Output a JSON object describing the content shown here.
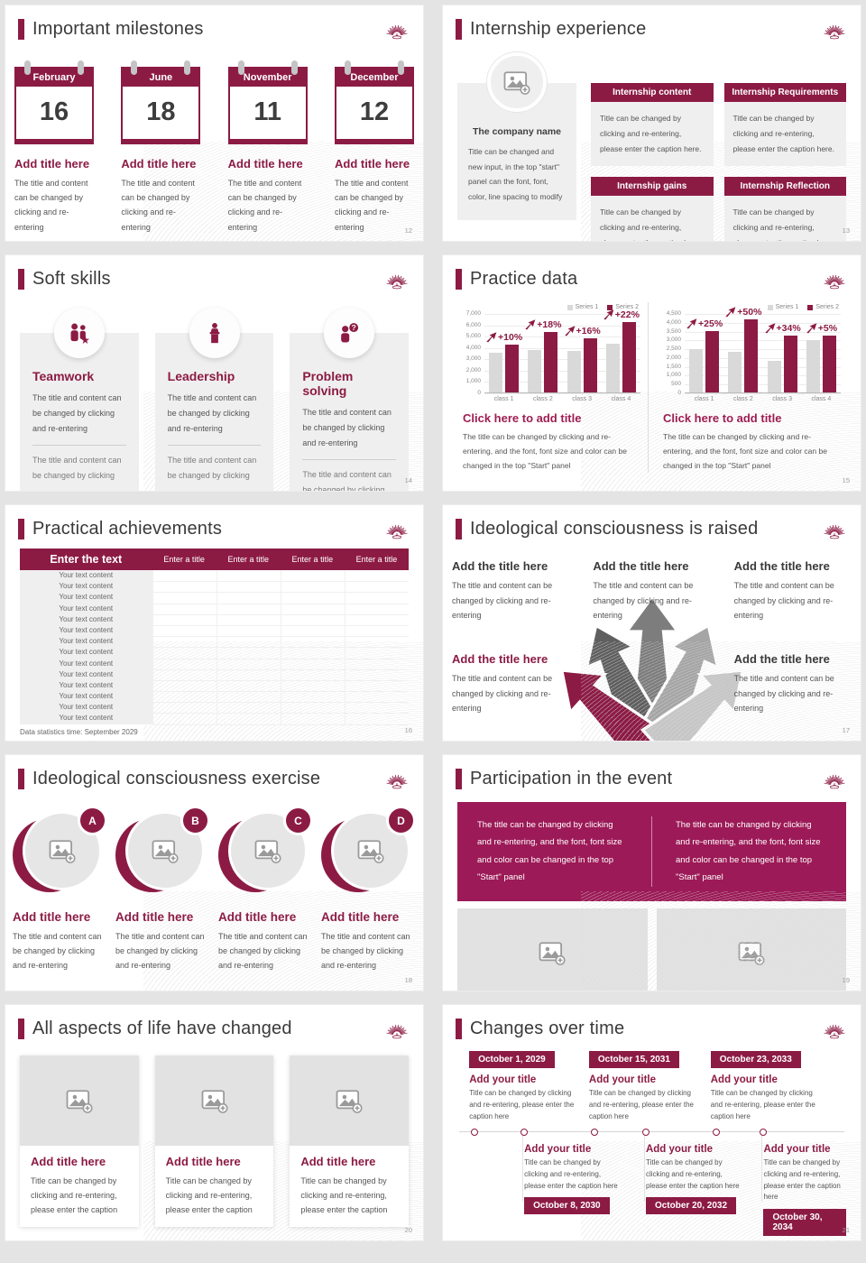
{
  "brand": {
    "primary": "#8C1B44",
    "accent": "#9E1D52",
    "banner": "#9C1A57",
    "panel_gray": "#efefef",
    "bar_gray": "#d9d9d9"
  },
  "slides": {
    "milestones": {
      "title": "Important milestones",
      "page": "12",
      "items": [
        {
          "month": "February",
          "day": "16",
          "heading": "Add title here",
          "body": "The title and content can be changed by clicking and re-entering"
        },
        {
          "month": "June",
          "day": "18",
          "heading": "Add title here",
          "body": "The title and content can be changed by clicking and re-entering"
        },
        {
          "month": "November",
          "day": "11",
          "heading": "Add title here",
          "body": "The title and content can be changed by clicking and re-entering"
        },
        {
          "month": "December",
          "day": "12",
          "heading": "Add title here",
          "body": "The title and content can be changed by clicking and re-entering"
        }
      ]
    },
    "internship": {
      "title": "Internship experience",
      "page": "13",
      "company": {
        "name": "The company name",
        "body": "Title can be changed and new input, in the top \"start\" panel can the font, font, color, line spacing to modify"
      },
      "boxes": [
        {
          "header": "Internship content",
          "body": "Title can be changed by clicking and re-entering, please enter the caption here."
        },
        {
          "header": "Internship Requirements",
          "body": "Title can be changed by clicking and re-entering, please enter the caption here."
        },
        {
          "header": "Internship gains",
          "body": "Title can be changed by clicking and re-entering, please enter the caption here."
        },
        {
          "header": "Internship Reflection",
          "body": "Title can be changed by clicking and re-entering, please enter the caption here."
        }
      ]
    },
    "soft_skills": {
      "title": "Soft skills",
      "page": "14",
      "cards": [
        {
          "icon": "teamwork-icon",
          "heading": "Teamwork",
          "body1": "The title and content can be changed by clicking and re-entering",
          "body2": "The title and content can be changed by clicking"
        },
        {
          "icon": "leadership-icon",
          "heading": "Leadership",
          "body1": "The title and content can be changed by clicking and re-entering",
          "body2": "The title and content can be changed by clicking"
        },
        {
          "icon": "problem-solving-icon",
          "heading": "Problem solving",
          "body1": "The title and content can be changed by clicking and re-entering",
          "body2": "The title and content can be changed by clicking"
        }
      ]
    },
    "practice_data": {
      "title": "Practice data",
      "page": "15",
      "panels": [
        {
          "caption_title": "Click here to add title",
          "caption_body": "The title can be changed by clicking and re-entering, and the font, font size and color can be changed in the top \"Start\" panel"
        },
        {
          "caption_title": "Click here to add title",
          "caption_body": "The title can be changed by clicking and re-entering, and the font, font size and color can be changed in the top \"Start\" panel"
        }
      ]
    },
    "practical": {
      "title": "Practical achievements",
      "page": "16",
      "table": {
        "first_header": "Enter the text",
        "headers": [
          "Enter a title",
          "Enter a title",
          "Enter a title",
          "Enter a title"
        ],
        "rows": [
          "Your text content",
          "Your text content",
          "Your text content",
          "Your text content",
          "Your text content",
          "Your text content",
          "Your text content",
          "Your text content",
          "Your text content",
          "Your text content",
          "Your text content",
          "Your text content",
          "Your text content",
          "Your text content"
        ]
      },
      "footnote": "Data statistics time: September 2029"
    },
    "raised": {
      "title": "Ideological consciousness is raised",
      "page": "17",
      "blocks": [
        {
          "heading": "Add the title here",
          "body": "The title and content can be changed by clicking and re-entering"
        },
        {
          "heading": "Add the title here",
          "body": "The title and content can be changed by clicking and re-entering"
        },
        {
          "heading": "Add the title here",
          "body": "The title and content can be changed by clicking and re-entering"
        },
        {
          "heading": "Add the title here",
          "body": "The title and content can be changed by clicking and re-entering"
        },
        {
          "heading": "Add the title here",
          "body": "The title and content can be changed by clicking and re-entering"
        }
      ]
    },
    "exercise": {
      "title": "Ideological consciousness exercise",
      "page": "18",
      "items": [
        {
          "badge": "A",
          "heading": "Add title here",
          "body": "The title and content can be changed by clicking and re-entering"
        },
        {
          "badge": "B",
          "heading": "Add title here",
          "body": "The title and content can be changed by clicking and re-entering"
        },
        {
          "badge": "C",
          "heading": "Add title here",
          "body": "The title and content can be changed by clicking and re-entering"
        },
        {
          "badge": "D",
          "heading": "Add title here",
          "body": "The title and content can be changed by clicking and re-entering"
        }
      ]
    },
    "participation": {
      "title": "Participation in the event",
      "page": "19",
      "banner_left": "The title can be changed by clicking and re-entering, and the font, font size and color can be changed in the top \"Start\" panel",
      "banner_right": "The title can be changed by clicking and re-entering, and the font, font size and color can be changed in the top \"Start\" panel"
    },
    "life_changed": {
      "title": "All aspects of life have changed",
      "page": "20",
      "cards": [
        {
          "heading": "Add title here",
          "body": "Title can be changed by clicking and re-entering, please enter the caption"
        },
        {
          "heading": "Add title here",
          "body": "Title can be changed by clicking and re-entering, please enter the caption"
        },
        {
          "heading": "Add title here",
          "body": "Title can be changed by clicking and re-entering, please enter the caption"
        }
      ]
    },
    "changes": {
      "title": "Changes over time",
      "page": "21",
      "top": [
        {
          "date": "October 1, 2029",
          "heading": "Add your title",
          "body": "Title can be changed by clicking and re-entering, please enter the caption here"
        },
        {
          "date": "October 15, 2031",
          "heading": "Add your title",
          "body": "Title can be changed by clicking and re-entering, please enter the caption here"
        },
        {
          "date": "October 23, 2033",
          "heading": "Add your title",
          "body": "Title can be changed by clicking and re-entering, please enter the caption here"
        }
      ],
      "bottom": [
        {
          "date": "October 8, 2030",
          "heading": "Add your title",
          "body": "Title can be changed by clicking and re-entering, please enter the caption here"
        },
        {
          "date": "October 20, 2032",
          "heading": "Add your title",
          "body": "Title can be changed by clicking and re-entering, please enter the caption here"
        },
        {
          "date": "October 30, 2034",
          "heading": "Add your title",
          "body": "Title can be changed by clicking and re-entering, please enter the caption here"
        }
      ]
    }
  },
  "chart_data": [
    {
      "type": "bar",
      "title": "",
      "categories": [
        "class 1",
        "class 2",
        "class 3",
        "class 4"
      ],
      "series": [
        {
          "name": "Series 1",
          "values": [
            3500,
            3750,
            3650,
            4300
          ]
        },
        {
          "name": "Series 2",
          "values": [
            4200,
            5300,
            4750,
            6200
          ]
        }
      ],
      "pct_labels": [
        "+10%",
        "+18%",
        "+16%",
        "+22%"
      ],
      "colors": [
        "#d9d9d9",
        "#8C1B44"
      ],
      "ylim": [
        0,
        7000
      ],
      "ymax": 7000,
      "yticks": [
        "7,000",
        "6,000",
        "5,000",
        "4,000",
        "3,000",
        "2,000",
        "1,000",
        "0"
      ],
      "grid": true,
      "legend_position": "top-right"
    },
    {
      "type": "bar",
      "title": "",
      "categories": [
        "class 1",
        "class 2",
        "class 3",
        "class 4"
      ],
      "series": [
        {
          "name": "Series 1",
          "values": [
            2450,
            2300,
            1800,
            2950
          ]
        },
        {
          "name": "Series 2",
          "values": [
            3500,
            4150,
            3200,
            3200
          ]
        }
      ],
      "pct_labels": [
        "+25%",
        "+50%",
        "+34%",
        "+5%"
      ],
      "colors": [
        "#d9d9d9",
        "#8C1B44"
      ],
      "ylim": [
        0,
        4500
      ],
      "ymax": 4500,
      "yticks": [
        "4,500",
        "4,000",
        "3,500",
        "3,000",
        "2,500",
        "2,000",
        "1,500",
        "1,000",
        "500",
        "0"
      ],
      "grid": true,
      "legend_position": "top-right"
    }
  ]
}
